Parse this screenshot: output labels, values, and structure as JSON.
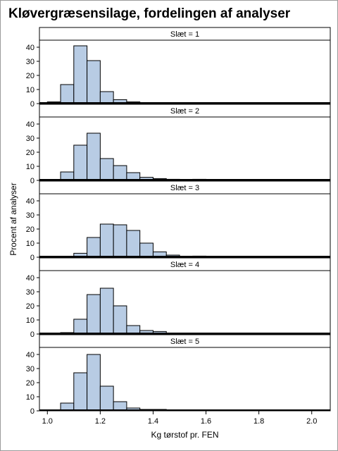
{
  "title": "Kløvergræsensilage, fordelingen af analyser",
  "colors": {
    "bar_fill": "#b8cce4",
    "bar_stroke": "#000000",
    "panel_border": "#000000",
    "strip_fill": "#ffffff",
    "background": "#ffffff"
  },
  "chart_data": {
    "type": "bar",
    "title": "Kløvergræsensilage, fordelingen af analyser",
    "xlabel": "Kg tørstof pr. FEN",
    "ylabel": "Procent af analyser",
    "xlim": [
      0.97,
      2.07
    ],
    "ylim": [
      0,
      45
    ],
    "bin_width": 0.05,
    "x_ticks": [
      1.0,
      1.2,
      1.4,
      1.6,
      1.8,
      2.0
    ],
    "x_tick_labels": [
      "1.0",
      "1.2",
      "1.4",
      "1.6",
      "1.8",
      "2.0"
    ],
    "y_ticks": [
      0,
      10,
      20,
      30,
      40
    ],
    "y_tick_labels": [
      "0",
      "10",
      "20",
      "30",
      "40"
    ],
    "grid": false,
    "bins": [
      1.0,
      1.05,
      1.1,
      1.15,
      1.2,
      1.25,
      1.3,
      1.35,
      1.4,
      1.45,
      1.5,
      1.55,
      1.6,
      1.65,
      1.7,
      1.75,
      1.8,
      1.85,
      1.9,
      1.95,
      2.0
    ],
    "panels": [
      {
        "label": "Slæt = 1",
        "values": [
          1.2,
          13.5,
          41,
          30.5,
          8.5,
          2.8,
          1.2,
          0.6,
          0.3,
          0.2,
          0,
          0,
          0.1,
          0,
          0,
          0,
          0,
          0,
          0,
          0,
          0
        ]
      },
      {
        "label": "Slæt = 2",
        "values": [
          0,
          6,
          25,
          33.5,
          15.5,
          10.5,
          5.5,
          2.2,
          1.3,
          0.8,
          0.3,
          0.8,
          0,
          0,
          0,
          0,
          0,
          0,
          0,
          0,
          0
        ]
      },
      {
        "label": "Slæt = 3",
        "values": [
          0,
          0.2,
          2.8,
          14,
          23.5,
          23,
          19,
          10,
          3.8,
          1.5,
          0.5,
          0.8,
          0.5,
          0,
          0,
          0,
          0,
          0,
          0,
          0.4,
          0
        ]
      },
      {
        "label": "Slæt = 4",
        "values": [
          0,
          1,
          10.5,
          28,
          32.5,
          20,
          6,
          2.5,
          1.8,
          0,
          0,
          0,
          0,
          0,
          0,
          0,
          0,
          0,
          0,
          0,
          0
        ]
      },
      {
        "label": "Slæt = 5",
        "values": [
          0,
          5.5,
          27,
          40,
          17.5,
          6.5,
          2,
          1,
          1,
          0.3,
          0,
          0,
          0,
          0,
          0,
          0,
          0,
          0,
          0,
          0,
          0
        ]
      }
    ]
  }
}
